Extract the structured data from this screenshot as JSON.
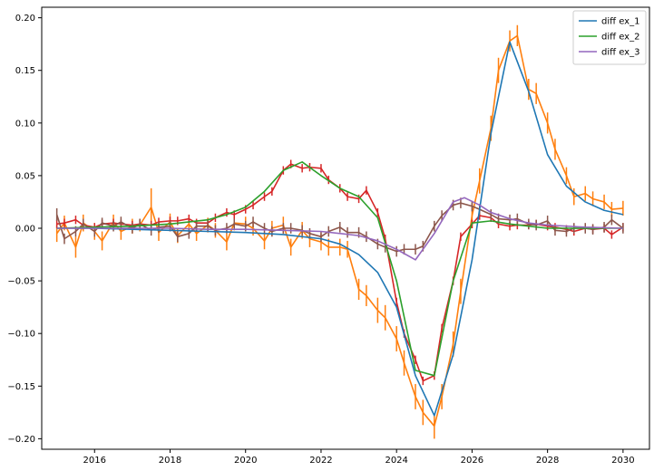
{
  "chart_data": {
    "type": "line",
    "title": "",
    "xlabel": "",
    "ylabel": "",
    "xlim": [
      2014.6,
      2030.7
    ],
    "ylim": [
      -0.21,
      0.21
    ],
    "x_ticks": [
      2016,
      2018,
      2020,
      2022,
      2024,
      2026,
      2028,
      2030
    ],
    "y_ticks": [
      -0.2,
      -0.15,
      -0.1,
      -0.05,
      0.0,
      0.05,
      0.1,
      0.15,
      0.2
    ],
    "x_tick_labels": [
      "2016",
      "2018",
      "2020",
      "2022",
      "2024",
      "2026",
      "2028",
      "2030"
    ],
    "y_tick_labels": [
      "−0.20",
      "−0.15",
      "−0.10",
      "−0.05",
      "0.00",
      "0.05",
      "0.10",
      "0.15",
      "0.20"
    ],
    "grid": false,
    "legend_position": "top-right",
    "series": [
      {
        "name": "diff ex_1",
        "color": "#1f77b4",
        "x": [
          2015.0,
          2016.0,
          2017.0,
          2018.0,
          2019.0,
          2020.0,
          2021.0,
          2022.0,
          2022.5,
          2023.0,
          2023.5,
          2024.0,
          2024.5,
          2025.0,
          2025.5,
          2026.0,
          2026.5,
          2027.0,
          2027.5,
          2028.0,
          2028.5,
          2029.0,
          2029.5,
          2030.0
        ],
        "y": [
          0.0,
          0.0,
          -0.001,
          -0.002,
          -0.003,
          -0.004,
          -0.006,
          -0.01,
          -0.015,
          -0.025,
          -0.042,
          -0.075,
          -0.14,
          -0.178,
          -0.12,
          -0.03,
          0.09,
          0.177,
          0.13,
          0.07,
          0.04,
          0.025,
          0.017,
          0.013
        ]
      },
      {
        "name": "diff ex_2",
        "color": "#2ca02c",
        "x": [
          2015.0,
          2016.0,
          2017.0,
          2018.0,
          2019.0,
          2019.5,
          2020.0,
          2020.5,
          2021.0,
          2021.5,
          2022.0,
          2022.5,
          2023.0,
          2023.5,
          2024.0,
          2024.5,
          2025.0,
          2025.5,
          2026.0,
          2026.5,
          2027.0,
          2027.5,
          2028.0,
          2029.0,
          2030.0
        ],
        "y": [
          0.0,
          0.001,
          0.002,
          0.004,
          0.008,
          0.013,
          0.02,
          0.035,
          0.055,
          0.063,
          0.05,
          0.038,
          0.03,
          0.01,
          -0.05,
          -0.135,
          -0.14,
          -0.05,
          0.005,
          0.007,
          0.004,
          0.002,
          0.0,
          0.0,
          0.0
        ]
      },
      {
        "name": "diff ex_3",
        "color": "#9467bd",
        "x": [
          2015.0,
          2016.0,
          2017.0,
          2018.0,
          2019.0,
          2020.0,
          2021.0,
          2022.0,
          2023.0,
          2023.5,
          2024.0,
          2024.5,
          2025.0,
          2025.5,
          2025.8,
          2026.2,
          2026.5,
          2027.0,
          2027.5,
          2028.0,
          2029.0,
          2030.0
        ],
        "y": [
          0.0,
          0.0,
          0.0,
          0.0,
          -0.001,
          -0.001,
          -0.002,
          -0.003,
          -0.007,
          -0.012,
          -0.02,
          -0.03,
          -0.005,
          0.025,
          0.029,
          0.022,
          0.015,
          0.009,
          0.005,
          0.003,
          0.001,
          0.0
        ]
      },
      {
        "color": "#ff7f0e",
        "x": [
          2015.0,
          2015.2,
          2015.5,
          2015.7,
          2016.0,
          2016.2,
          2016.5,
          2016.7,
          2017.0,
          2017.2,
          2017.5,
          2017.7,
          2018.0,
          2018.2,
          2018.5,
          2018.7,
          2019.0,
          2019.2,
          2019.5,
          2019.7,
          2020.0,
          2020.2,
          2020.5,
          2020.7,
          2021.0,
          2021.2,
          2021.5,
          2021.7,
          2022.0,
          2022.2,
          2022.5,
          2022.7,
          2023.0,
          2023.2,
          2023.5,
          2023.7,
          2024.0,
          2024.2,
          2024.5,
          2024.7,
          2025.0,
          2025.2,
          2025.5,
          2025.7,
          2026.0,
          2026.2,
          2026.5,
          2026.7,
          2027.0,
          2027.2,
          2027.5,
          2027.7,
          2028.0,
          2028.2,
          2028.5,
          2028.7,
          2029.0,
          2029.2,
          2029.5,
          2029.7,
          2030.0
        ],
        "y": [
          -0.005,
          0.005,
          -0.018,
          0.005,
          -0.003,
          -0.012,
          0.006,
          -0.003,
          0.002,
          0.003,
          0.02,
          -0.004,
          0.006,
          -0.007,
          0.004,
          -0.005,
          0.003,
          -0.002,
          -0.013,
          0.005,
          0.004,
          0.0,
          -0.012,
          0.0,
          0.003,
          -0.018,
          -0.002,
          -0.01,
          -0.013,
          -0.018,
          -0.018,
          -0.02,
          -0.058,
          -0.064,
          -0.078,
          -0.085,
          -0.105,
          -0.128,
          -0.16,
          -0.175,
          -0.188,
          -0.16,
          -0.11,
          -0.06,
          0.012,
          0.045,
          0.095,
          0.15,
          0.178,
          0.183,
          0.132,
          0.128,
          0.1,
          0.075,
          0.05,
          0.03,
          0.033,
          0.028,
          0.025,
          0.018,
          0.019
        ],
        "err": [
          0.008,
          0.007,
          0.01,
          0.008,
          0.008,
          0.009,
          0.007,
          0.008,
          0.007,
          0.006,
          0.018,
          0.008,
          0.008,
          0.007,
          0.008,
          0.007,
          0.007,
          0.007,
          0.008,
          0.007,
          0.007,
          0.007,
          0.008,
          0.007,
          0.008,
          0.008,
          0.008,
          0.008,
          0.008,
          0.008,
          0.008,
          0.008,
          0.01,
          0.01,
          0.012,
          0.012,
          0.012,
          0.012,
          0.012,
          0.012,
          0.012,
          0.012,
          0.012,
          0.012,
          0.012,
          0.012,
          0.012,
          0.012,
          0.01,
          0.01,
          0.01,
          0.01,
          0.01,
          0.01,
          0.008,
          0.008,
          0.007,
          0.007,
          0.007,
          0.007,
          0.007
        ]
      },
      {
        "color": "#d62728",
        "x": [
          2015.0,
          2015.2,
          2015.5,
          2015.7,
          2016.0,
          2016.2,
          2016.5,
          2016.7,
          2017.0,
          2017.2,
          2017.5,
          2017.7,
          2018.0,
          2018.2,
          2018.5,
          2018.7,
          2019.0,
          2019.2,
          2019.5,
          2019.7,
          2020.0,
          2020.2,
          2020.5,
          2020.7,
          2021.0,
          2021.2,
          2021.5,
          2021.7,
          2022.0,
          2022.2,
          2022.5,
          2022.7,
          2023.0,
          2023.2,
          2023.5,
          2023.7,
          2024.0,
          2024.2,
          2024.5,
          2024.7,
          2025.0,
          2025.2,
          2025.5,
          2025.7,
          2026.0,
          2026.2,
          2026.5,
          2026.7,
          2027.0,
          2027.2,
          2027.5,
          2027.7,
          2028.0,
          2028.2,
          2028.5,
          2028.7,
          2029.0,
          2029.2,
          2029.5,
          2029.7,
          2030.0
        ],
        "y": [
          0.004,
          0.005,
          0.008,
          0.003,
          0.001,
          0.004,
          0.005,
          0.004,
          0.003,
          0.004,
          0.003,
          0.006,
          0.007,
          0.007,
          0.009,
          0.005,
          0.005,
          0.01,
          0.015,
          0.013,
          0.018,
          0.022,
          0.03,
          0.035,
          0.055,
          0.061,
          0.057,
          0.058,
          0.057,
          0.046,
          0.038,
          0.03,
          0.028,
          0.036,
          0.015,
          -0.01,
          -0.07,
          -0.1,
          -0.125,
          -0.145,
          -0.14,
          -0.095,
          -0.05,
          -0.008,
          0.004,
          0.012,
          0.01,
          0.004,
          0.002,
          0.003,
          0.003,
          0.004,
          0.002,
          0.001,
          -0.001,
          -0.003,
          0.0,
          -0.001,
          0.0,
          -0.006,
          0.001
        ],
        "err": [
          0.004,
          0.004,
          0.004,
          0.004,
          0.004,
          0.004,
          0.004,
          0.004,
          0.004,
          0.004,
          0.004,
          0.004,
          0.004,
          0.004,
          0.004,
          0.004,
          0.004,
          0.004,
          0.004,
          0.004,
          0.004,
          0.004,
          0.004,
          0.004,
          0.004,
          0.004,
          0.004,
          0.004,
          0.004,
          0.004,
          0.004,
          0.004,
          0.004,
          0.004,
          0.004,
          0.004,
          0.004,
          0.004,
          0.004,
          0.004,
          0.004,
          0.004,
          0.004,
          0.004,
          0.004,
          0.004,
          0.004,
          0.004,
          0.004,
          0.004,
          0.004,
          0.004,
          0.004,
          0.004,
          0.004,
          0.004,
          0.004,
          0.004,
          0.004,
          0.004,
          0.004
        ]
      },
      {
        "color": "#8c564b",
        "x": [
          2015.0,
          2015.2,
          2015.5,
          2015.7,
          2016.0,
          2016.2,
          2016.5,
          2016.7,
          2017.0,
          2017.2,
          2017.5,
          2017.7,
          2018.0,
          2018.2,
          2018.5,
          2018.7,
          2019.0,
          2019.2,
          2019.5,
          2019.7,
          2020.0,
          2020.2,
          2020.5,
          2020.7,
          2021.0,
          2021.2,
          2021.5,
          2021.7,
          2022.0,
          2022.2,
          2022.5,
          2022.7,
          2023.0,
          2023.2,
          2023.5,
          2023.7,
          2024.0,
          2024.2,
          2024.5,
          2024.7,
          2025.0,
          2025.2,
          2025.5,
          2025.7,
          2026.0,
          2026.2,
          2026.5,
          2026.7,
          2027.0,
          2027.2,
          2027.5,
          2027.7,
          2028.0,
          2028.2,
          2028.5,
          2028.7,
          2029.0,
          2029.2,
          2029.5,
          2029.7,
          2030.0
        ],
        "y": [
          0.013,
          -0.01,
          -0.003,
          0.004,
          -0.003,
          0.005,
          0.002,
          0.006,
          0.0,
          0.004,
          -0.002,
          0.001,
          0.002,
          -0.008,
          -0.005,
          0.002,
          0.002,
          -0.002,
          0.0,
          0.004,
          0.002,
          0.006,
          0.0,
          -0.003,
          0.0,
          0.0,
          -0.002,
          -0.005,
          -0.008,
          -0.003,
          0.001,
          -0.004,
          -0.004,
          -0.008,
          -0.015,
          -0.018,
          -0.022,
          -0.02,
          -0.02,
          -0.017,
          0.002,
          0.012,
          0.022,
          0.024,
          0.021,
          0.018,
          0.013,
          0.009,
          0.008,
          0.009,
          0.004,
          0.003,
          0.007,
          -0.002,
          -0.003,
          0.0,
          0.0,
          -0.001,
          0.001,
          0.008,
          0.0
        ],
        "err": [
          0.006,
          0.005,
          0.005,
          0.005,
          0.005,
          0.005,
          0.005,
          0.005,
          0.005,
          0.005,
          0.005,
          0.005,
          0.005,
          0.005,
          0.005,
          0.005,
          0.005,
          0.005,
          0.005,
          0.005,
          0.005,
          0.005,
          0.005,
          0.005,
          0.005,
          0.005,
          0.005,
          0.005,
          0.005,
          0.005,
          0.005,
          0.005,
          0.005,
          0.005,
          0.005,
          0.005,
          0.005,
          0.005,
          0.005,
          0.005,
          0.005,
          0.005,
          0.005,
          0.005,
          0.005,
          0.005,
          0.005,
          0.005,
          0.005,
          0.005,
          0.005,
          0.005,
          0.005,
          0.005,
          0.005,
          0.005,
          0.005,
          0.005,
          0.005,
          0.005,
          0.005
        ]
      }
    ]
  }
}
